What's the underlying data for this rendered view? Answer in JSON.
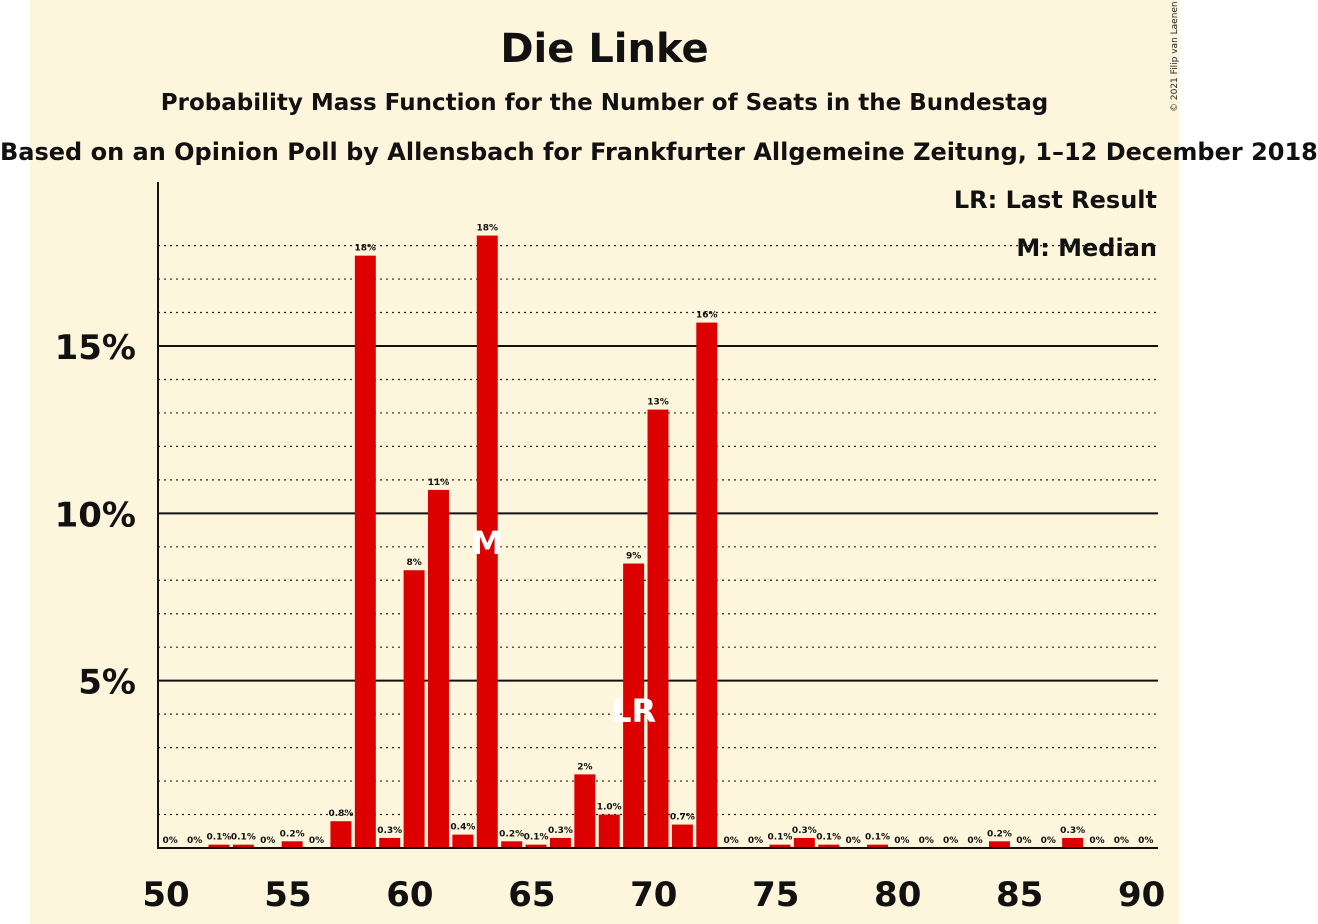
{
  "title": "Die Linke",
  "subtitle": "Probability Mass Function for the Number of Seats in the Bundestag",
  "subtitle2": "Based on an Opinion Poll by Allensbach for Frankfurter Allgemeine Zeitung, 1–12 December 2018",
  "credit": "© 2021 Filip van Laenen",
  "legend": {
    "lr": "LR: Last Result",
    "m": "M: Median"
  },
  "colors": {
    "bar": "#dd0000",
    "background": "#fef6dc",
    "text": "#111111"
  },
  "chart_data": {
    "type": "bar",
    "x": [
      50,
      51,
      52,
      53,
      54,
      55,
      56,
      57,
      58,
      59,
      60,
      61,
      62,
      63,
      64,
      65,
      66,
      67,
      68,
      69,
      70,
      71,
      72,
      73,
      74,
      75,
      76,
      77,
      78,
      79,
      80,
      81,
      82,
      83,
      84,
      85,
      86,
      87,
      88,
      89,
      90
    ],
    "values": [
      0,
      0,
      0.1,
      0.1,
      0,
      0.2,
      0,
      0.8,
      17.7,
      0.3,
      8.3,
      10.7,
      0.4,
      18.3,
      0.2,
      0.1,
      0.3,
      2.2,
      1.0,
      8.5,
      13.1,
      0.7,
      15.7,
      0,
      0,
      0.1,
      0.3,
      0.1,
      0,
      0.1,
      0,
      0,
      0,
      0,
      0.2,
      0,
      0,
      0.3,
      0,
      0,
      0
    ],
    "labels": [
      "0%",
      "0%",
      "0.1%",
      "0.1%",
      "0%",
      "0.2%",
      "0%",
      "0.8%",
      "18%",
      "0.3%",
      "8%",
      "11%",
      "0.4%",
      "18%",
      "0.2%",
      "0.1%",
      "0.3%",
      "2%",
      "1.0%",
      "9%",
      "13%",
      "0.7%",
      "16%",
      "0%",
      "0%",
      "0.1%",
      "0.3%",
      "0.1%",
      "0%",
      "0.1%",
      "0%",
      "0%",
      "0%",
      "0%",
      "0.2%",
      "0%",
      "0%",
      "0.3%",
      "0%",
      "0%",
      "0%"
    ],
    "xticks": [
      50,
      55,
      60,
      65,
      70,
      75,
      80,
      85,
      90
    ],
    "yticks": [
      {
        "value": 5,
        "label": "5%"
      },
      {
        "value": 10,
        "label": "10%"
      },
      {
        "value": 15,
        "label": "15%"
      }
    ],
    "ylim": [
      0,
      20
    ],
    "minor_grid_step": 1,
    "median": {
      "seat": 63,
      "marker": "M"
    },
    "last_result": {
      "seat": 69,
      "marker": "LR"
    },
    "xlabel": "",
    "ylabel": ""
  }
}
